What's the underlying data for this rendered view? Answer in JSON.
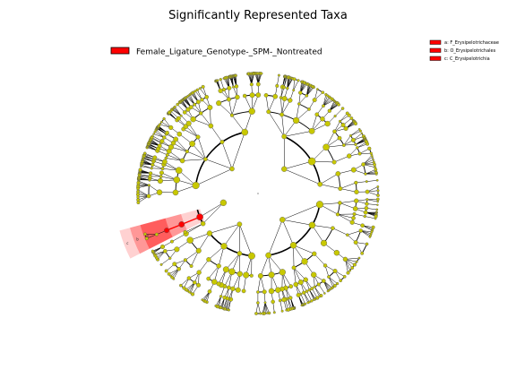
{
  "chart_data": {
    "type": "cladogram",
    "title": "Significantly Represented Taxa",
    "class_legend": [
      {
        "label": "Female_Ligature_Genotype-_SPM-_Nontreated",
        "color": "#ff0000"
      }
    ],
    "taxa_legend": [
      {
        "key": "a",
        "label": "a: F_Erysipelotrichaceae",
        "color": "#ff0000"
      },
      {
        "key": "b",
        "label": "b: O_Erysipelotrichales",
        "color": "#ff0000"
      },
      {
        "key": "c",
        "label": "c: C_Erysipelotrichia",
        "color": "#ff0000"
      }
    ],
    "highlighted_clades": [
      {
        "letter": "c",
        "rank": "class",
        "color": "#ff0000"
      },
      {
        "letter": "b",
        "rank": "order",
        "color": "#ff0000"
      },
      {
        "letter": "a",
        "rank": "family",
        "color": "#ff0000"
      }
    ],
    "node_color": "#c8c800",
    "highlight_color": "#ff0000"
  }
}
